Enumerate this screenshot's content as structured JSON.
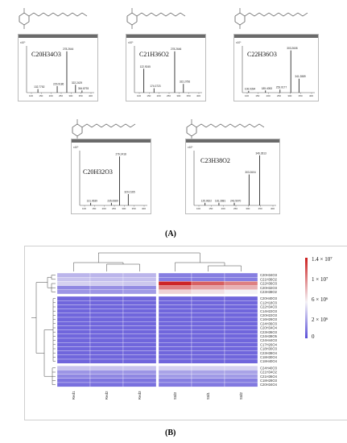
{
  "panel_a": {
    "caption": "(A)",
    "spectra": [
      {
        "formula": "C20H34O3",
        "yscale": "x10⁵",
        "mol_label": "C₂₀H₃₄O₃",
        "peaks": [
          [
            "132.7752",
            0.08
          ],
          [
            "229.9186",
            0.15
          ],
          [
            "278.2644",
            0.95
          ],
          [
            "322.2429",
            0.18
          ],
          [
            "354.8793",
            0.05
          ]
        ]
      },
      {
        "formula": "C21H36O2",
        "yscale": "x10⁵",
        "mol_label": "C₂₁H₃₆O₂",
        "peaks": [
          [
            "122.9245",
            0.55
          ],
          [
            "174.0723",
            0.1
          ],
          [
            "278.2646",
            0.95
          ],
          [
            "322.2756",
            0.2
          ]
        ]
      },
      {
        "formula": "C22H36O3",
        "yscale": "x10⁵",
        "mol_label": "C₂₂H₃₆O₃",
        "peaks": [
          [
            "106.9394",
            0.04
          ],
          [
            "185.4053",
            0.05
          ],
          [
            "253.0177",
            0.07
          ],
          [
            "303.2608",
            0.97
          ],
          [
            "341.2889",
            0.32
          ]
        ]
      },
      {
        "formula": "C20H32O3",
        "yscale": "x10⁵",
        "mol_label": "",
        "peaks": [
          [
            "131.0639",
            0.05
          ],
          [
            "276.2418",
            0.95
          ],
          [
            "235.0689",
            0.05
          ],
          [
            "320.2165",
            0.22
          ]
        ]
      },
      {
        "formula": "C23H38O2",
        "yscale": "x10⁵",
        "mol_label": "",
        "peaks": [
          [
            "125.0622",
            0.05
          ],
          [
            "181.2881",
            0.05
          ],
          [
            "243.5070",
            0.05
          ],
          [
            "303.2604",
            0.6
          ],
          [
            "346.2813",
            0.97
          ]
        ]
      }
    ]
  },
  "panel_b": {
    "caption": "(B)",
    "columns": [
      "Red1",
      "Red2",
      "Red3",
      "Std3",
      "Std1",
      "Std2"
    ],
    "rows": [
      "C20H34O3",
      "C21H36O2",
      "C22H36O3",
      "C20H32O3",
      "C23H38O2",
      "C20H40O3",
      "C12H18O3",
      "C22H34O3",
      "C14H22O3",
      "C20H22O3",
      "C16H26O3",
      "C24H36O3",
      "C20H34O4",
      "C23H36O3",
      "C24H38O5",
      "C24H44O3",
      "C17H26O4",
      "C18H30O3",
      "C23H38O4",
      "C18H30O4",
      "C18H40O4",
      "C24H40O3",
      "C21H34O2",
      "C21H36O4",
      "C18H28O3",
      "C20H34O4"
    ],
    "values": [
      [
        0.22,
        0.22,
        0.22,
        0.1,
        0.1,
        0.1
      ],
      [
        0.25,
        0.24,
        0.24,
        0.1,
        0.1,
        0.1
      ],
      [
        0.28,
        0.27,
        0.26,
        0.98,
        0.8,
        0.7
      ],
      [
        0.12,
        0.14,
        0.13,
        0.7,
        0.6,
        0.55
      ],
      [
        0.15,
        0.15,
        0.16,
        0.45,
        0.4,
        0.35
      ],
      [
        0.05,
        0.05,
        0.05,
        0.05,
        0.05,
        0.05
      ],
      [
        0.05,
        0.05,
        0.05,
        0.05,
        0.05,
        0.05
      ],
      [
        0.05,
        0.05,
        0.05,
        0.05,
        0.05,
        0.05
      ],
      [
        0.05,
        0.05,
        0.05,
        0.05,
        0.05,
        0.05
      ],
      [
        0.05,
        0.05,
        0.05,
        0.05,
        0.05,
        0.05
      ],
      [
        0.05,
        0.05,
        0.05,
        0.05,
        0.05,
        0.05
      ],
      [
        0.05,
        0.05,
        0.05,
        0.05,
        0.05,
        0.05
      ],
      [
        0.05,
        0.05,
        0.05,
        0.05,
        0.05,
        0.05
      ],
      [
        0.05,
        0.05,
        0.05,
        0.05,
        0.05,
        0.05
      ],
      [
        0.05,
        0.05,
        0.05,
        0.05,
        0.05,
        0.05
      ],
      [
        0.05,
        0.05,
        0.05,
        0.05,
        0.05,
        0.05
      ],
      [
        0.05,
        0.05,
        0.05,
        0.05,
        0.05,
        0.05
      ],
      [
        0.05,
        0.05,
        0.05,
        0.05,
        0.05,
        0.05
      ],
      [
        0.05,
        0.05,
        0.05,
        0.05,
        0.05,
        0.05
      ],
      [
        0.05,
        0.05,
        0.05,
        0.05,
        0.05,
        0.05
      ],
      [
        0.05,
        0.05,
        0.05,
        0.05,
        0.05,
        0.05
      ],
      [
        0.25,
        0.25,
        0.25,
        0.28,
        0.28,
        0.28
      ],
      [
        0.15,
        0.15,
        0.15,
        0.18,
        0.18,
        0.18
      ],
      [
        0.12,
        0.12,
        0.12,
        0.16,
        0.16,
        0.16
      ],
      [
        0.08,
        0.08,
        0.08,
        0.1,
        0.1,
        0.1
      ],
      [
        0.07,
        0.07,
        0.07,
        0.09,
        0.09,
        0.09
      ]
    ],
    "legend": [
      "1.4 × 10⁷",
      "1 × 10⁷",
      "6 × 10⁶",
      "2 × 10⁶",
      "0"
    ],
    "colors": {
      "high": "#cc1f1f",
      "mid": "#f4f2f6",
      "low": "#5a4fd8"
    }
  }
}
